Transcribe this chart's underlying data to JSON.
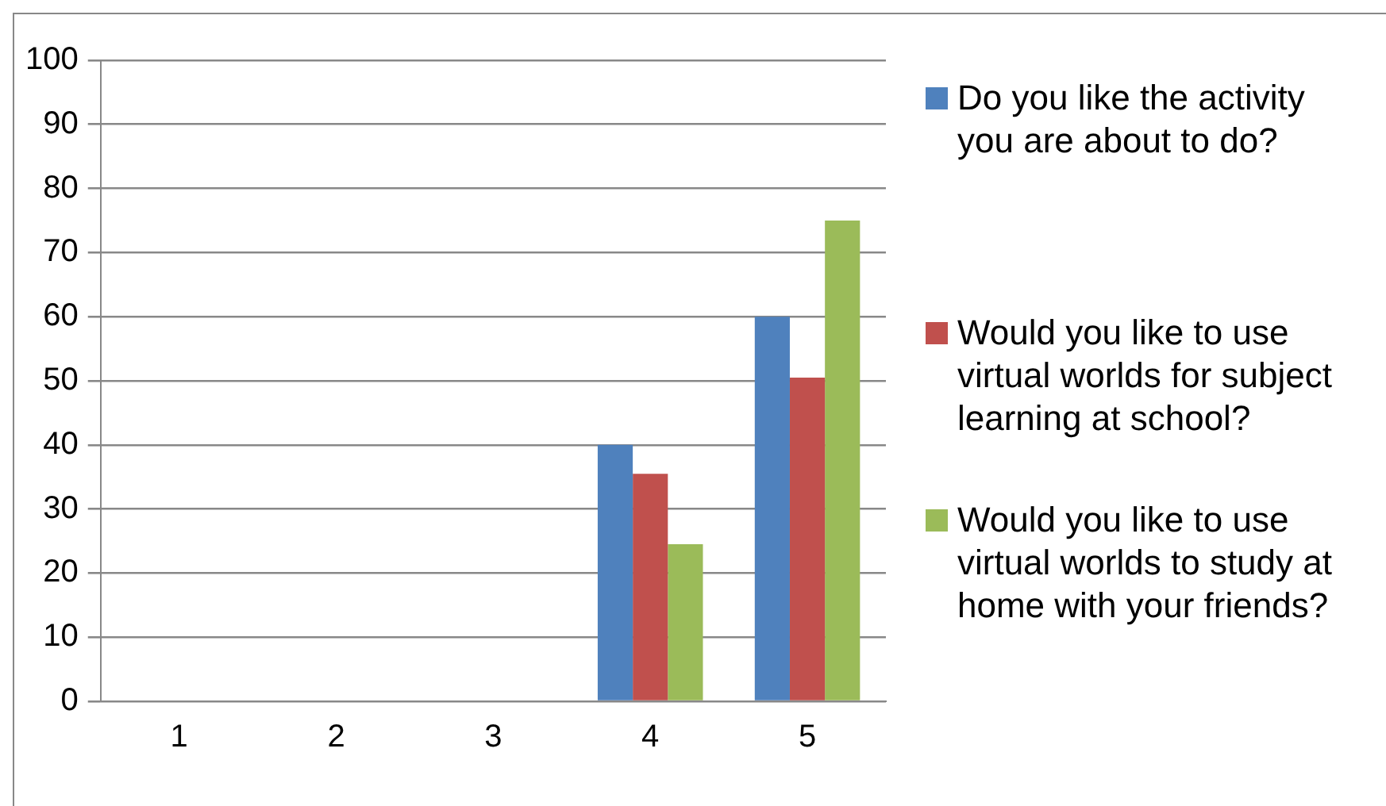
{
  "chart_data": {
    "type": "bar",
    "categories": [
      "1",
      "2",
      "3",
      "4",
      "5"
    ],
    "series": [
      {
        "name": "Do you like the activity you are about to do?",
        "color": "#4f81bd",
        "values": [
          0,
          0,
          0,
          40,
          60
        ]
      },
      {
        "name": "Would you like to use virtual worlds for subject learning at school?",
        "color": "#c0504d",
        "values": [
          0,
          0,
          0,
          35.5,
          50.5
        ]
      },
      {
        "name": "Would you like to use virtual worlds to study at home with your friends?",
        "color": "#9bbb59",
        "values": [
          0,
          0,
          0,
          24.5,
          75
        ]
      }
    ],
    "ylim": [
      0,
      100
    ],
    "yticks": [
      0,
      10,
      20,
      30,
      40,
      50,
      60,
      70,
      80,
      90,
      100
    ],
    "grid": "y",
    "legend": "right"
  }
}
